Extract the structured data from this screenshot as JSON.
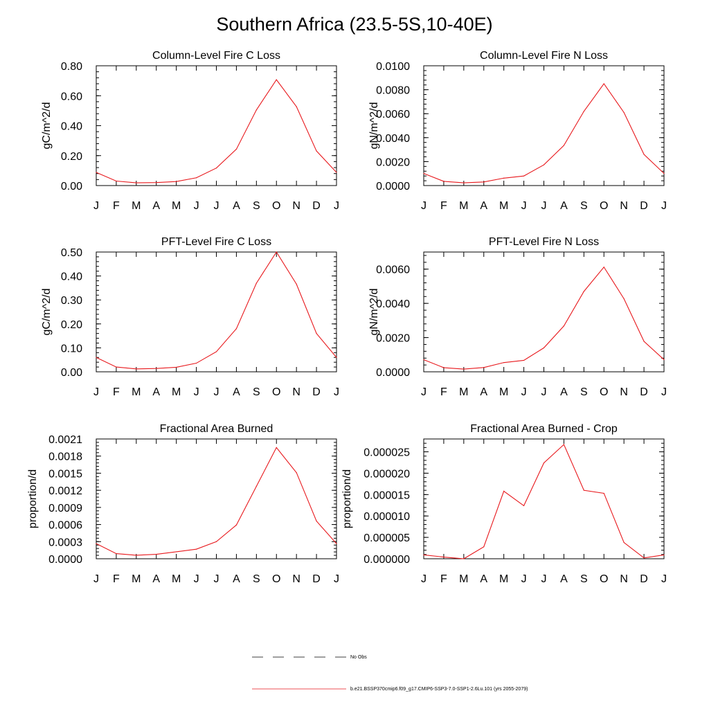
{
  "title": "Southern Africa (23.5-5S,10-40E)",
  "months": [
    "J",
    "F",
    "M",
    "A",
    "M",
    "J",
    "J",
    "A",
    "S",
    "O",
    "N",
    "D",
    "J"
  ],
  "colors": {
    "model": "#e8181c",
    "axis": "#000000"
  },
  "chart_data": [
    {
      "type": "line",
      "title": "Column-Level Fire C Loss",
      "ylabel": "gC/m^2/d",
      "ylim": [
        0,
        0.8
      ],
      "yticks": [
        "0.00",
        "0.20",
        "0.40",
        "0.60",
        "0.80"
      ],
      "x": [
        "J",
        "F",
        "M",
        "A",
        "M",
        "J",
        "J",
        "A",
        "S",
        "O",
        "N",
        "D",
        "J"
      ],
      "values": [
        0.088,
        0.03,
        0.018,
        0.02,
        0.027,
        0.052,
        0.117,
        0.243,
        0.505,
        0.707,
        0.527,
        0.231,
        0.088
      ]
    },
    {
      "type": "line",
      "title": "Column-Level Fire N Loss",
      "ylabel": "gN/m^2/d",
      "ylim": [
        0,
        0.01
      ],
      "yticks": [
        "0.0000",
        "0.0020",
        "0.0040",
        "0.0060",
        "0.0080",
        "0.0100"
      ],
      "x": [
        "J",
        "F",
        "M",
        "A",
        "M",
        "J",
        "J",
        "A",
        "S",
        "O",
        "N",
        "D",
        "J"
      ],
      "values": [
        0.00101,
        0.00035,
        0.00023,
        0.0003,
        0.00062,
        0.0008,
        0.00173,
        0.00335,
        0.0062,
        0.0085,
        0.0061,
        0.0026,
        0.00101
      ]
    },
    {
      "type": "line",
      "title": "PFT-Level Fire C Loss",
      "ylabel": "gC/m^2/d",
      "ylim": [
        0,
        0.5
      ],
      "yticks": [
        "0.00",
        "0.10",
        "0.20",
        "0.30",
        "0.40",
        "0.50"
      ],
      "x": [
        "J",
        "F",
        "M",
        "A",
        "M",
        "J",
        "J",
        "A",
        "S",
        "O",
        "N",
        "D",
        "J"
      ],
      "values": [
        0.06,
        0.02,
        0.012,
        0.014,
        0.019,
        0.036,
        0.084,
        0.18,
        0.37,
        0.5,
        0.366,
        0.16,
        0.06
      ]
    },
    {
      "type": "line",
      "title": "PFT-Level Fire N Loss",
      "ylabel": "gN/m^2/d",
      "ylim": [
        0,
        0.007
      ],
      "yticks": [
        "0.0000",
        "0.0020",
        "0.0040",
        "0.0060"
      ],
      "ytick_values": [
        0,
        0.002,
        0.004,
        0.006
      ],
      "x": [
        "J",
        "F",
        "M",
        "A",
        "M",
        "J",
        "J",
        "A",
        "S",
        "O",
        "N",
        "D",
        "J"
      ],
      "values": [
        0.00071,
        0.00024,
        0.00016,
        0.00025,
        0.00054,
        0.00067,
        0.0014,
        0.00268,
        0.0047,
        0.00612,
        0.00427,
        0.00178,
        0.00071
      ]
    },
    {
      "type": "line",
      "title": "Fractional Area Burned",
      "ylabel": "proportion/d",
      "ylim": [
        0,
        0.0021
      ],
      "yticks": [
        "0.0000",
        "0.0003",
        "0.0006",
        "0.0009",
        "0.0012",
        "0.0015",
        "0.0018",
        "0.0021"
      ],
      "x": [
        "J",
        "F",
        "M",
        "A",
        "M",
        "J",
        "J",
        "A",
        "S",
        "O",
        "N",
        "D",
        "J"
      ],
      "values": [
        0.000265,
        9e-05,
        6.2e-05,
        7.8e-05,
        0.000122,
        0.000168,
        0.0003,
        0.000592,
        0.00127,
        0.00195,
        0.00151,
        0.00066,
        0.000265
      ]
    },
    {
      "type": "line",
      "title": "Fractional Area Burned - Crop",
      "ylabel": "proportion/d",
      "ylim": [
        0,
        2.8e-05
      ],
      "yticks": [
        "0.000000",
        "0.000005",
        "0.000010",
        "0.000015",
        "0.000020",
        "0.000025"
      ],
      "ytick_values": [
        0,
        5e-06,
        1e-05,
        1.5e-05,
        2e-05,
        2.5e-05
      ],
      "x": [
        "J",
        "F",
        "M",
        "A",
        "M",
        "J",
        "J",
        "A",
        "S",
        "O",
        "N",
        "D",
        "J"
      ],
      "values": [
        9e-07,
        4e-07,
        0.0,
        2.8e-06,
        1.58e-05,
        1.24e-05,
        2.24e-05,
        2.67e-05,
        1.6e-05,
        1.53e-05,
        3.8e-06,
        2e-07,
        9e-07
      ]
    }
  ],
  "legend": {
    "entries": [
      {
        "label": "No Obs",
        "style": "dashed",
        "color": "#000000"
      },
      {
        "label": "b.e21.BSSP370cmip6.f09_g17.CMIP6-SSP3-7.0-SSP1-2.6Lu.101 (yrs 2055-2079)",
        "style": "solid",
        "color": "#e8181c"
      }
    ]
  }
}
